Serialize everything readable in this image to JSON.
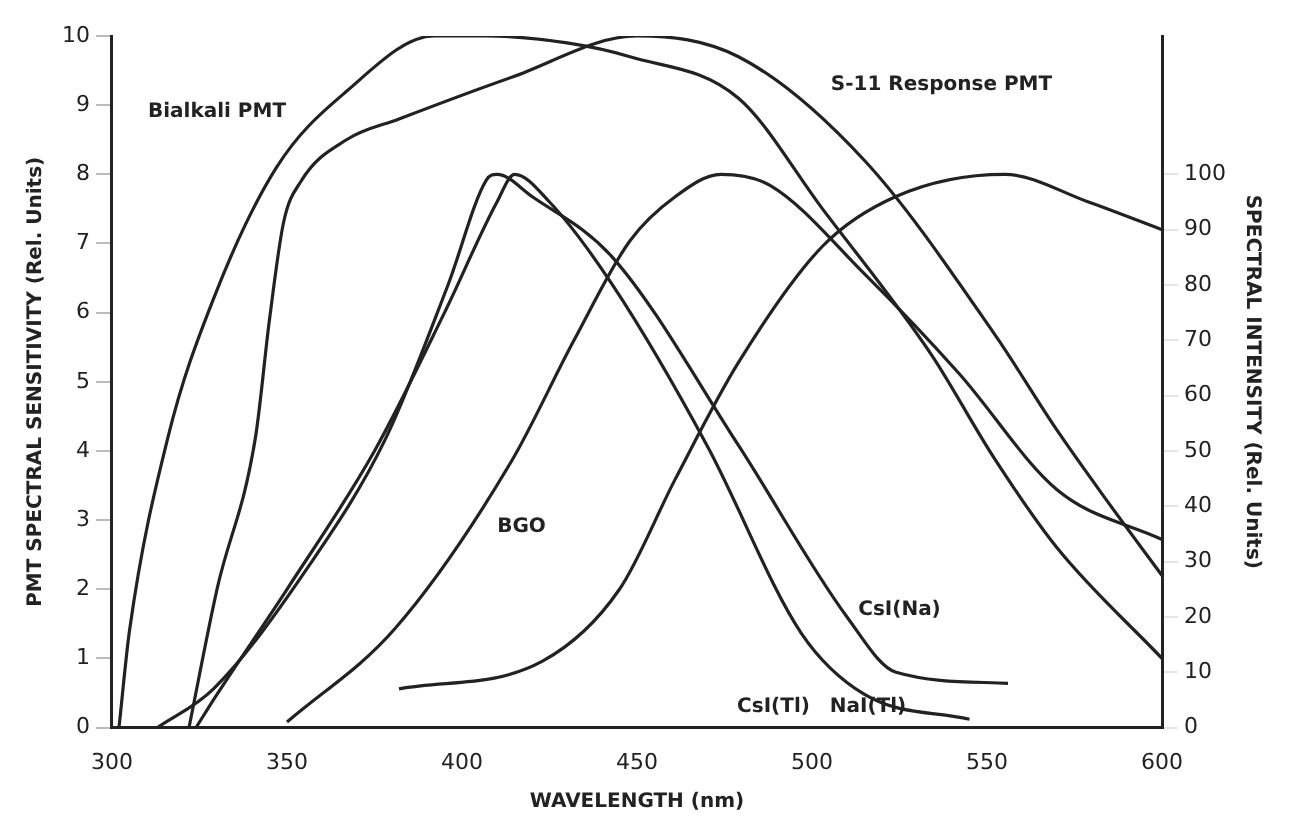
{
  "chart_data": {
    "type": "line",
    "xlabel": "WAVELENGTH (nm)",
    "ylabel": "PMT SPECTRAL SENSITIVITY (Rel. Units)",
    "y2label": "SPECTRAL INTENSITY (Rel. Units)",
    "xlim": [
      300,
      600
    ],
    "xticks": [
      300,
      350,
      400,
      450,
      500,
      550,
      600
    ],
    "ylim": [
      0,
      10
    ],
    "yticks": [
      0,
      1,
      2,
      3,
      4,
      5,
      6,
      7,
      8,
      9,
      10
    ],
    "y2lim": [
      0,
      125
    ],
    "y2ticks": [
      0,
      10,
      20,
      30,
      40,
      50,
      60,
      70,
      80,
      90,
      100
    ],
    "grid": false,
    "legend": false,
    "marker": "none",
    "line_style": "solid",
    "series": [
      {
        "color": "#222222",
        "x": [
          302,
          305,
          316,
          329,
          347,
          367,
          392,
          407,
          430,
          448,
          479,
          503,
          534,
          552,
          570,
          600
        ],
        "values": [
          0,
          1.4,
          4.2,
          6.2,
          8.1,
          9.2,
          10,
          10,
          9.9,
          9.7,
          9.1,
          7.5,
          5.4,
          3.9,
          2.6,
          1.0
        ]
      },
      {
        "color": "#222222",
        "x": [
          322,
          330,
          341,
          345,
          349,
          354,
          367,
          382,
          414,
          450,
          479,
          515,
          552,
          570,
          584,
          600
        ],
        "values": [
          0,
          2.0,
          4.2,
          5.9,
          7.3,
          7.9,
          8.5,
          8.8,
          9.4,
          10,
          9.7,
          8.2,
          5.7,
          4.3,
          3.3,
          2.2
        ]
      },
      {
        "color": "#222222",
        "axis": "y2",
        "x": [
          350,
          381,
          414,
          432,
          448,
          461,
          474,
          488,
          515,
          542,
          570,
          600
        ],
        "values": [
          1,
          18,
          48,
          70,
          88,
          96,
          100,
          98,
          82,
          64,
          43,
          34
        ]
      },
      {
        "color": "#222222",
        "axis": "y2",
        "x": [
          382,
          423,
          445,
          461,
          479,
          503,
          524,
          555,
          579,
          600
        ],
        "values": [
          7,
          12,
          25,
          45,
          66,
          87,
          96,
          100,
          95,
          90
        ]
      },
      {
        "color": "#222222",
        "axis": "y2",
        "x": [
          324,
          330,
          350,
          375,
          395,
          410,
          415,
          425,
          443,
          470,
          497,
          515,
          545
        ],
        "values": [
          0,
          6,
          25,
          50,
          75,
          95,
          100,
          95,
          80,
          51,
          17,
          6,
          1.5
        ]
      },
      {
        "color": "#222222",
        "axis": "y2",
        "x": [
          313,
          329,
          356,
          378,
          396,
          407,
          410,
          420,
          443,
          479,
          510,
          524,
          556
        ],
        "values": [
          0,
          7,
          29,
          52,
          80,
          99,
          100,
          96,
          85,
          51,
          20,
          10,
          8
        ]
      }
    ],
    "annotations": [
      "Bialkali PMT",
      "S-11 Response PMT",
      "BGO",
      "CsI(Tl)",
      "NaI(Tl)",
      "CsI(Na)"
    ]
  }
}
